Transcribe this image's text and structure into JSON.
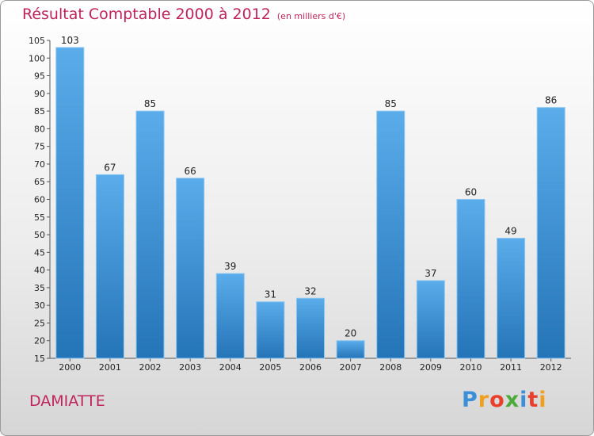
{
  "chart_data": {
    "type": "bar",
    "title": "Résultat Comptable 2000 à 2012",
    "unit_label": "(en milliers d'€)",
    "categories": [
      "2000",
      "2001",
      "2002",
      "2003",
      "2004",
      "2005",
      "2006",
      "2007",
      "2008",
      "2009",
      "2010",
      "2011",
      "2012"
    ],
    "values": [
      103,
      67,
      85,
      66,
      39,
      31,
      32,
      20,
      85,
      37,
      60,
      49,
      86
    ],
    "ylim": [
      15,
      105
    ],
    "yticks": [
      15,
      20,
      25,
      30,
      35,
      40,
      45,
      50,
      55,
      60,
      65,
      70,
      75,
      80,
      85,
      90,
      95,
      100,
      105
    ],
    "grid": false,
    "legend": "none",
    "bar_color": "#3d8fd6"
  },
  "commune_name": "DAMIATTE",
  "logo": {
    "letters": [
      "P",
      "r",
      "o",
      "x",
      "i",
      "t",
      "i"
    ],
    "colors": [
      "#3a8fd8",
      "#f0a020",
      "#e8402a",
      "#4caa3a",
      "#3a8fd8",
      "#e8402a",
      "#f0a020"
    ]
  },
  "colors": {
    "title": "#c0245c",
    "axis": "#555555"
  }
}
